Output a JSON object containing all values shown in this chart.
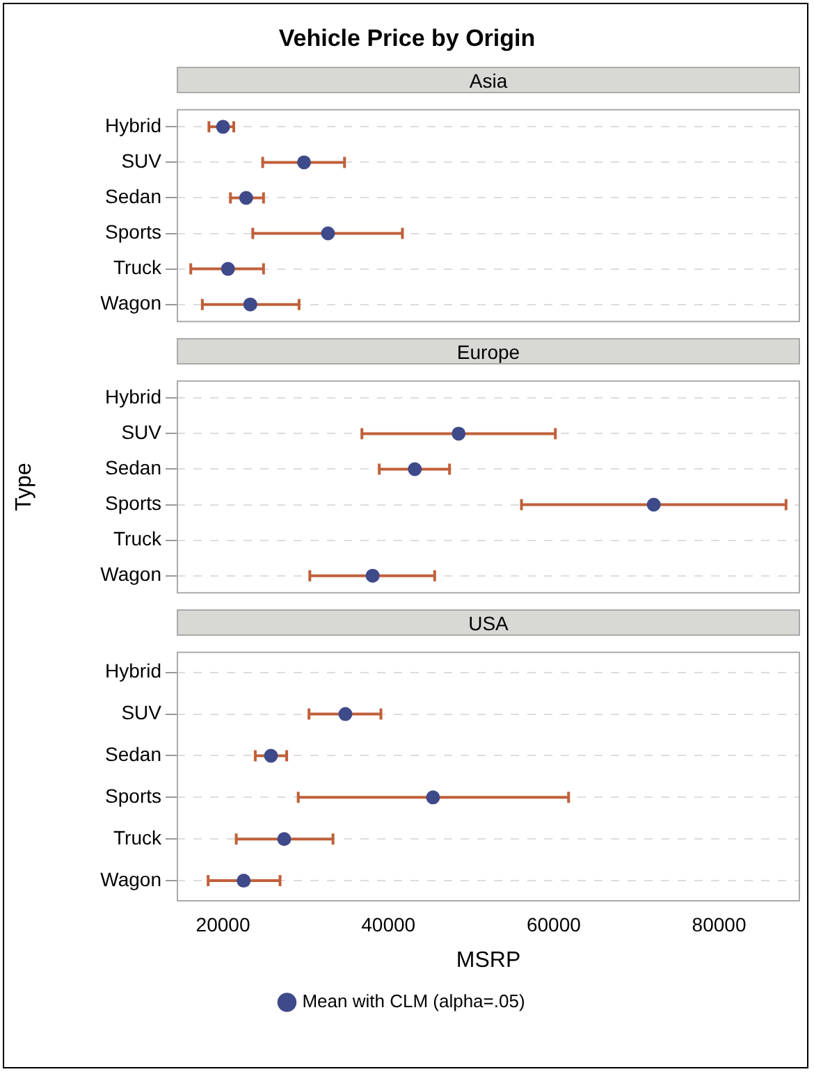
{
  "chart_data": [
    {
      "type": "scatter",
      "orientation": "horizontal",
      "title": "Vehicle Price by Origin",
      "subtitle": "Asia",
      "categories": [
        "Hybrid",
        "SUV",
        "Sedan",
        "Sports",
        "Truck",
        "Wagon"
      ],
      "series": [
        {
          "color": "#3f4a8a",
          "values": [
            20000,
            29800,
            22800,
            32700,
            20600,
            23300
          ],
          "errors": [
            [
              18300,
              21300
            ],
            [
              24800,
              34700
            ],
            [
              20900,
              24900
            ],
            [
              23600,
              41700
            ],
            [
              16100,
              24900
            ],
            [
              17500,
              29200
            ]
          ]
        }
      ],
      "xlim": [
        14400,
        89800
      ],
      "xticks": [
        20000,
        40000,
        60000,
        80000
      ],
      "tick_labels": "y",
      "grid": "y",
      "marker": "circle"
    },
    {
      "type": "scatter",
      "orientation": "horizontal",
      "subtitle": "Europe",
      "ylabel": "Type",
      "categories": [
        "Hybrid",
        "SUV",
        "Sedan",
        "Sports",
        "Truck",
        "Wagon"
      ],
      "series": [
        {
          "color": "#3f4a8a",
          "values": [
            null,
            48500,
            43200,
            72100,
            null,
            38100
          ],
          "errors": [
            null,
            [
              36800,
              60200
            ],
            [
              38900,
              47400
            ],
            [
              56100,
              88100
            ],
            null,
            [
              30500,
              45600
            ]
          ]
        }
      ],
      "xlim": [
        14400,
        89800
      ],
      "xticks": [
        20000,
        40000,
        60000,
        80000
      ],
      "tick_labels": "y",
      "grid": "y",
      "marker": "circle"
    },
    {
      "type": "scatter",
      "orientation": "horizontal",
      "subtitle": "USA",
      "xlabel": "MSRP",
      "categories": [
        "Hybrid",
        "SUV",
        "Sedan",
        "Sports",
        "Truck",
        "Wagon"
      ],
      "series": [
        {
          "name": "Mean with CLM (alpha=.05)",
          "color": "#3f4a8a",
          "values": [
            null,
            34800,
            25800,
            45400,
            27400,
            22500
          ],
          "errors": [
            null,
            [
              30400,
              39100
            ],
            [
              23900,
              27700
            ],
            [
              29100,
              61800
            ],
            [
              21600,
              33300
            ],
            [
              18200,
              26900
            ]
          ]
        }
      ],
      "xlim": [
        14400,
        89800
      ],
      "xticks": [
        20000,
        40000,
        60000,
        80000
      ],
      "grid": "y",
      "marker": "circle",
      "legend": "bottom"
    }
  ]
}
